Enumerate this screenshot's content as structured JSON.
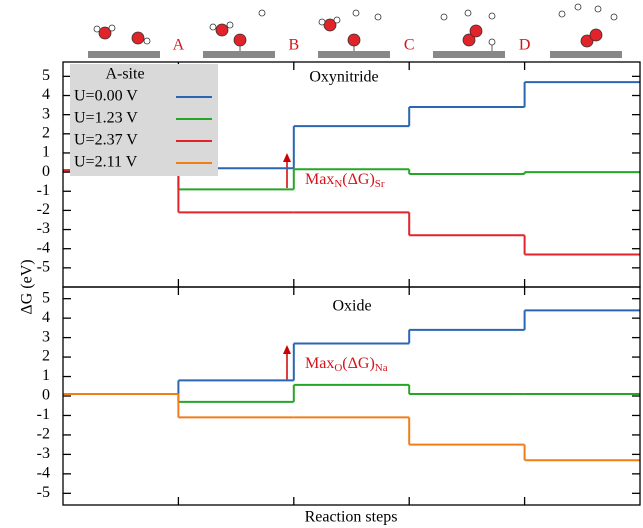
{
  "chart_data": [
    {
      "type": "step",
      "title": "Oxynitride",
      "step_labels": [
        "A",
        "B",
        "C",
        "D"
      ],
      "categories": [
        null,
        null,
        null,
        null,
        null
      ],
      "ylabel": "ΔG (eV)",
      "ylim": [
        -6,
        5.75
      ],
      "yticks": [
        -5,
        -4,
        -3,
        -2,
        -1,
        0,
        1,
        2,
        3,
        4,
        5
      ],
      "legend_title": "A-site",
      "legend": "upper left",
      "annotation": [
        "Max",
        "N",
        "(ΔG)",
        "Sr"
      ],
      "series": [
        {
          "name": "U=0.00 V",
          "color": "#2a66b3",
          "values": [
            0.1,
            0.2,
            2.4,
            3.4,
            4.7
          ]
        },
        {
          "name": "U=1.23 V",
          "color": "#26a626",
          "values": [
            0.1,
            -0.9,
            0.15,
            -0.1,
            0.0
          ]
        },
        {
          "name": "U=2.37 V",
          "color": "#e0242a",
          "values": [
            0.1,
            -2.1,
            -2.1,
            -3.3,
            -4.3
          ]
        }
      ]
    },
    {
      "type": "step",
      "title": "Oxide",
      "categories": [
        null,
        null,
        null,
        null,
        null
      ],
      "xlabel": "Reaction steps",
      "ylim": [
        -5.6,
        5.6
      ],
      "yticks": [
        -5,
        -4,
        -3,
        -2,
        -1,
        0,
        1,
        2,
        3,
        4,
        5
      ],
      "annotation": [
        "Max",
        "O",
        "(ΔG)",
        "Na"
      ],
      "series": [
        {
          "name": "U=0.00 V",
          "color": "#2a66b3",
          "values": [
            0.1,
            0.8,
            2.7,
            3.4,
            4.4
          ]
        },
        {
          "name": "U=1.23 V",
          "color": "#26a626",
          "values": [
            0.1,
            -0.3,
            0.57,
            0.1,
            0.1
          ]
        },
        {
          "name": "U=2.11 V",
          "color": "#f07d1a",
          "values": [
            0.1,
            -1.1,
            -1.1,
            -2.5,
            -3.3
          ]
        }
      ]
    }
  ]
}
